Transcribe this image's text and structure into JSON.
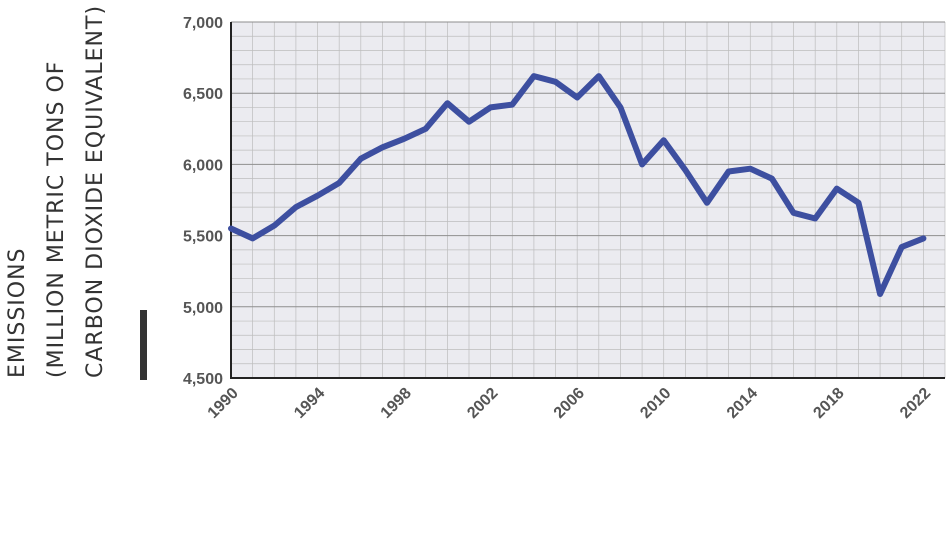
{
  "chart_data": {
    "type": "line",
    "title": "",
    "xlabel": "",
    "ylabel_lines": [
      "EMISSIONS",
      "(MILLION METRIC TONS OF",
      "CARBON DIOXIDE EQUIVALENT)"
    ],
    "ylim": [
      4500,
      7000
    ],
    "xlim": [
      1990,
      2023
    ],
    "yticks": [
      "4,500",
      "5,000",
      "5,500",
      "6,000",
      "6,500",
      "7,000"
    ],
    "ytick_values": [
      4500,
      5000,
      5500,
      6000,
      6500,
      7000
    ],
    "xticks": [
      "1990",
      "1994",
      "1998",
      "2002",
      "2006",
      "2010",
      "2014",
      "2018",
      "2022"
    ],
    "xtick_values": [
      1990,
      1994,
      1998,
      2002,
      2006,
      2010,
      2014,
      2018,
      2022
    ],
    "grid": true,
    "colors": {
      "line": "#3d4fa0",
      "plot_bg": "#ebebf0",
      "grid": "#bdbdbd",
      "axis": "#222222"
    },
    "series": [
      {
        "x": [
          1990,
          1991,
          1992,
          1993,
          1994,
          1995,
          1996,
          1997,
          1998,
          1999,
          2000,
          2001,
          2002,
          2003,
          2004,
          2005,
          2006,
          2007,
          2008,
          2009,
          2010,
          2011,
          2012,
          2013,
          2014,
          2015,
          2016,
          2017,
          2018,
          2019,
          2020,
          2021,
          2022
        ],
        "values": [
          5550,
          5480,
          5570,
          5700,
          5780,
          5870,
          6040,
          6120,
          6180,
          6250,
          6430,
          6300,
          6400,
          6420,
          6620,
          6580,
          6470,
          6620,
          6400,
          6000,
          6170,
          5960,
          5730,
          5950,
          5970,
          5900,
          5660,
          5620,
          5830,
          5730,
          5090,
          5420,
          5480
        ]
      }
    ]
  }
}
